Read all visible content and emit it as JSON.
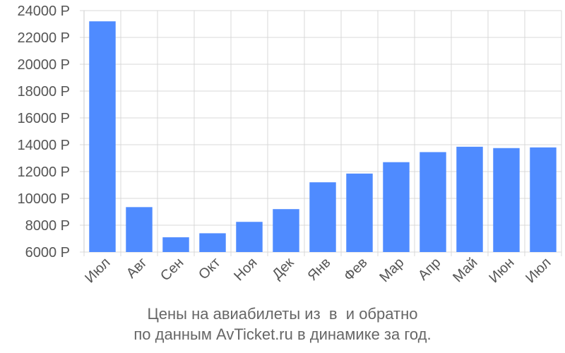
{
  "chart_data": {
    "type": "bar",
    "categories": [
      "Июл",
      "Авг",
      "Сен",
      "Окт",
      "Ноя",
      "Дек",
      "Янв",
      "Фев",
      "Мар",
      "Апр",
      "Май",
      "Июн",
      "Июл"
    ],
    "values": [
      23200,
      9350,
      7100,
      7400,
      8250,
      9200,
      11200,
      11850,
      12700,
      13450,
      13850,
      13750,
      13800
    ],
    "y_ticks": [
      "6000 Р",
      "8000 Р",
      "10000 Р",
      "12000 Р",
      "14000 Р",
      "16000 Р",
      "18000 Р",
      "20000 Р",
      "22000 Р",
      "24000 Р"
    ],
    "ylim": [
      6000,
      24000
    ],
    "ystep": 2000,
    "grid": true,
    "bar_color": "#4f8bff",
    "title_line1": "Цены на авиабилеты из  в  и обратно",
    "title_line2": "по данным AvTicket.ru в динамике за год."
  }
}
